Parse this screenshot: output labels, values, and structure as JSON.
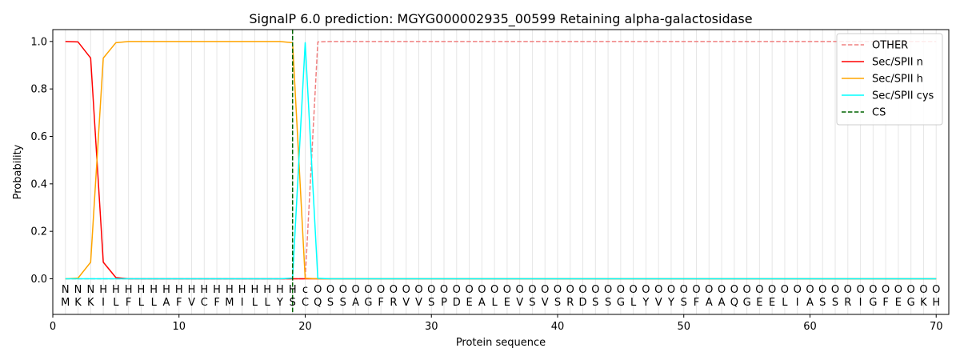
{
  "chart_data": {
    "type": "line",
    "title": "SignalP 6.0 prediction: MGYG000002935_00599 Retaining alpha-galactosidase",
    "xlabel": "Protein sequence",
    "ylabel": "Probability",
    "xlim": [
      0,
      71
    ],
    "ylim": [
      -0.15,
      1.05
    ],
    "xticks": [
      0,
      10,
      20,
      30,
      40,
      50,
      60,
      70
    ],
    "yticks": [
      0.0,
      0.2,
      0.4,
      0.6,
      0.8,
      1.0
    ],
    "ytick_labels": [
      "0.0",
      "0.2",
      "0.4",
      "0.6",
      "0.8",
      "1.0"
    ],
    "legend_position": "top-right",
    "residues": [
      "M",
      "K",
      "K",
      "I",
      "L",
      "F",
      "L",
      "L",
      "A",
      "F",
      "V",
      "C",
      "F",
      "M",
      "I",
      "L",
      "L",
      "Y",
      "S",
      "C",
      "Q",
      "S",
      "S",
      "A",
      "G",
      "F",
      "R",
      "V",
      "V",
      "S",
      "P",
      "D",
      "E",
      "A",
      "L",
      "E",
      "V",
      "S",
      "V",
      "S",
      "R",
      "D",
      "S",
      "S",
      "G",
      "L",
      "Y",
      "V",
      "Y",
      "S",
      "F",
      "A",
      "A",
      "Q",
      "G",
      "E",
      "E",
      "L",
      "I",
      "A",
      "S",
      "S",
      "R",
      "I",
      "G",
      "F",
      "E",
      "G",
      "K",
      "H"
    ],
    "labels": [
      "N",
      "N",
      "N",
      "H",
      "H",
      "H",
      "H",
      "H",
      "H",
      "H",
      "H",
      "H",
      "H",
      "H",
      "H",
      "H",
      "H",
      "H",
      "H",
      "c",
      "O",
      "O",
      "O",
      "O",
      "O",
      "O",
      "O",
      "O",
      "O",
      "O",
      "O",
      "O",
      "O",
      "O",
      "O",
      "O",
      "O",
      "O",
      "O",
      "O",
      "O",
      "O",
      "O",
      "O",
      "O",
      "O",
      "O",
      "O",
      "O",
      "O",
      "O",
      "O",
      "O",
      "O",
      "O",
      "O",
      "O",
      "O",
      "O",
      "O",
      "O",
      "O",
      "O",
      "O",
      "O",
      "O",
      "O",
      "O",
      "O",
      "O"
    ],
    "label_colors": {
      "N": "#ff0000",
      "H": "#ffa500",
      "c": "#00ffff",
      "O": "#808080"
    },
    "cleavage_site": 19,
    "series": [
      {
        "name": "OTHER",
        "color": "#f08080",
        "style": "dashed",
        "values": [
          0,
          0,
          0,
          0,
          0,
          0,
          0,
          0,
          0,
          0,
          0,
          0,
          0,
          0,
          0,
          0,
          0,
          0,
          0,
          0,
          0.998,
          1,
          1,
          1,
          1,
          1,
          1,
          1,
          1,
          1,
          1,
          1,
          1,
          1,
          1,
          1,
          1,
          1,
          1,
          1,
          1,
          1,
          1,
          1,
          1,
          1,
          1,
          1,
          1,
          1,
          1,
          1,
          1,
          1,
          1,
          1,
          1,
          1,
          1,
          1,
          1,
          1,
          1,
          1,
          1,
          1,
          1,
          1,
          1,
          1
        ]
      },
      {
        "name": "Sec/SPII n",
        "color": "#ff0000",
        "style": "solid",
        "values": [
          1.0,
          0.998,
          0.93,
          0.07,
          0.005,
          0,
          0,
          0,
          0,
          0,
          0,
          0,
          0,
          0,
          0,
          0,
          0,
          0,
          0,
          0,
          0,
          0,
          0,
          0,
          0,
          0,
          0,
          0,
          0,
          0,
          0,
          0,
          0,
          0,
          0,
          0,
          0,
          0,
          0,
          0,
          0,
          0,
          0,
          0,
          0,
          0,
          0,
          0,
          0,
          0,
          0,
          0,
          0,
          0,
          0,
          0,
          0,
          0,
          0,
          0,
          0,
          0,
          0,
          0,
          0,
          0,
          0,
          0,
          0,
          0
        ]
      },
      {
        "name": "Sec/SPII h",
        "color": "#ffa500",
        "style": "solid",
        "values": [
          0,
          0.003,
          0.07,
          0.93,
          0.995,
          1.0,
          1.0,
          1.0,
          1.0,
          1.0,
          1.0,
          1.0,
          1.0,
          1.0,
          1.0,
          1.0,
          1.0,
          1.0,
          0.995,
          0.002,
          0,
          0,
          0,
          0,
          0,
          0,
          0,
          0,
          0,
          0,
          0,
          0,
          0,
          0,
          0,
          0,
          0,
          0,
          0,
          0,
          0,
          0,
          0,
          0,
          0,
          0,
          0,
          0,
          0,
          0,
          0,
          0,
          0,
          0,
          0,
          0,
          0,
          0,
          0,
          0,
          0,
          0,
          0,
          0,
          0,
          0,
          0,
          0,
          0,
          0
        ]
      },
      {
        "name": "Sec/SPII cys",
        "color": "#00ffff",
        "style": "solid",
        "values": [
          0,
          0,
          0,
          0,
          0,
          0,
          0,
          0,
          0,
          0,
          0,
          0,
          0,
          0,
          0,
          0,
          0,
          0,
          0.003,
          0.995,
          0.002,
          0,
          0,
          0,
          0,
          0,
          0,
          0,
          0,
          0,
          0,
          0,
          0,
          0,
          0,
          0,
          0,
          0,
          0,
          0,
          0,
          0,
          0,
          0,
          0,
          0,
          0,
          0,
          0,
          0,
          0,
          0,
          0,
          0,
          0,
          0,
          0,
          0,
          0,
          0,
          0,
          0,
          0,
          0,
          0,
          0,
          0,
          0,
          0,
          0
        ]
      }
    ],
    "cs_legend": {
      "name": "CS",
      "color": "#006400",
      "style": "dashed"
    }
  }
}
